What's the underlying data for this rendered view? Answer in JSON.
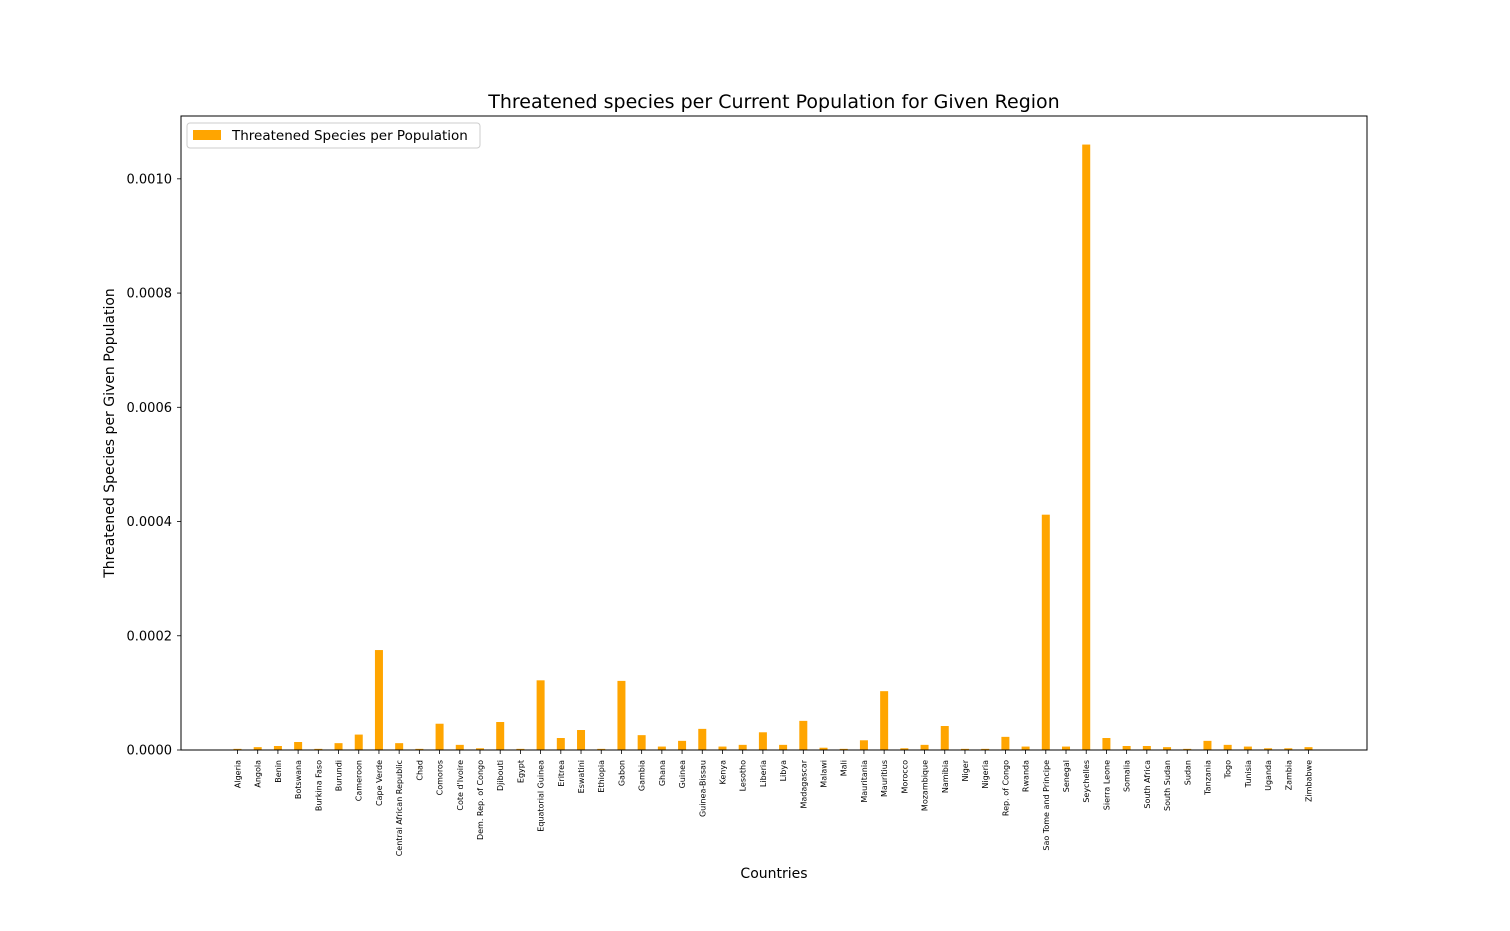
{
  "chart_data": {
    "type": "bar",
    "title": "Threatened species per Current Population for Given Region",
    "xlabel": "Countries",
    "ylabel": "Threatened Species per Given Population",
    "ylim": [
      0,
      0.00111
    ],
    "yticks": [
      0.0,
      0.0002,
      0.0004,
      0.0006,
      0.0008,
      0.001
    ],
    "ytick_labels": [
      "0.0000",
      "0.0002",
      "0.0004",
      "0.0006",
      "0.0008",
      "0.0010"
    ],
    "grid": false,
    "legend_position": "top-left",
    "bar_color": "#ffa500",
    "categories": [
      "Algeria",
      "Angola",
      "Benin",
      "Botswana",
      "Burkina Faso",
      "Burundi",
      "Cameroon",
      "Cape Verde",
      "Central African Republic",
      "Chad",
      "Comoros",
      "Cote d'Ivoire",
      "Dem. Rep. of Congo",
      "Djibouti",
      "Egypt",
      "Equatorial Guinea",
      "Eritrea",
      "Eswatini",
      "Ethiopia",
      "Gabon",
      "Gambia",
      "Ghana",
      "Guinea",
      "Guinea-Bissau",
      "Kenya",
      "Lesotho",
      "Liberia",
      "Libya",
      "Madagascar",
      "Malawi",
      "Mali",
      "Mauritania",
      "Mauritius",
      "Morocco",
      "Mozambique",
      "Namibia",
      "Niger",
      "Nigeria",
      "Rep. of Congo",
      "Rwanda",
      "Sao Tome and Principe",
      "Senegal",
      "Seychelles",
      "Sierra Leone",
      "Somalia",
      "South Africa",
      "South Sudan",
      "Sudan",
      "Tanzania",
      "Togo",
      "Tunisia",
      "Uganda",
      "Zambia",
      "Zimbabwe"
    ],
    "series": [
      {
        "name": "Threatened Species per Population",
        "values": [
          2e-06,
          5e-06,
          7e-06,
          1.4e-05,
          2e-06,
          1.2e-05,
          2.7e-05,
          0.000175,
          1.2e-05,
          2e-06,
          4.6e-05,
          9e-06,
          3e-06,
          4.9e-05,
          2e-06,
          0.000122,
          2.1e-05,
          3.5e-05,
          2e-06,
          0.000121,
          2.6e-05,
          6e-06,
          1.6e-05,
          3.7e-05,
          6e-06,
          9e-06,
          3.1e-05,
          9e-06,
          5.1e-05,
          4e-06,
          2e-06,
          1.7e-05,
          0.000103,
          3e-06,
          9e-06,
          4.2e-05,
          2e-06,
          2e-06,
          2.3e-05,
          6e-06,
          0.000412,
          6e-06,
          0.00106,
          2.1e-05,
          7e-06,
          7e-06,
          5e-06,
          2e-06,
          1.6e-05,
          9e-06,
          6e-06,
          3e-06,
          3e-06,
          5e-06
        ]
      }
    ]
  }
}
